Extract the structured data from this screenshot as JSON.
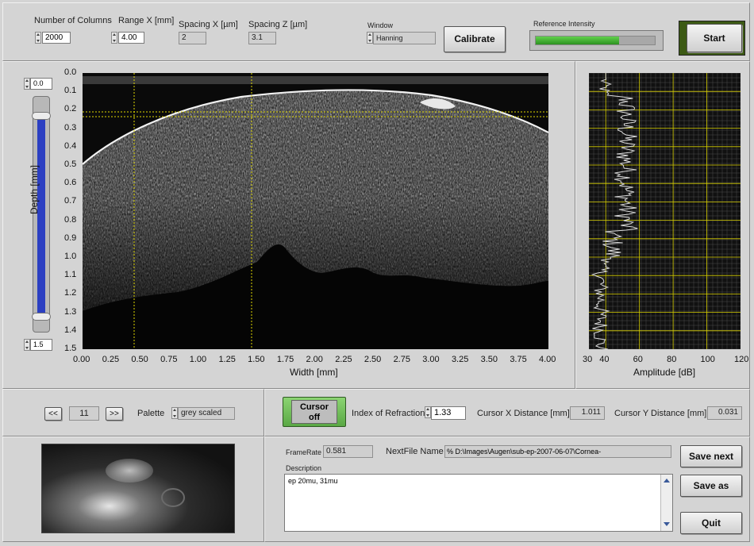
{
  "top": {
    "num_columns_label": "Number of Columns",
    "num_columns_value": "2000",
    "range_x_label": "Range X [mm]",
    "range_x_value": "4.00",
    "spacing_x_label": "Spacing X [µm]",
    "spacing_x_value": "2",
    "spacing_z_label": "Spacing Z [µm]",
    "spacing_z_value": "3.1",
    "window_label": "Window",
    "window_value": "Hanning",
    "calibrate_label": "Calibrate",
    "ref_intensity_label": "Reference Intensity",
    "ref_intensity_level": 0.7,
    "start_label": "Start"
  },
  "image": {
    "slider_top": "0.0",
    "slider_bottom": "1.5",
    "y_axis_label": "Depth [mm]",
    "x_axis_label": "Width [mm]",
    "y_ticks": [
      "0.0",
      "0.1",
      "0.2",
      "0.3",
      "0.4",
      "0.5",
      "0.6",
      "0.7",
      "0.8",
      "0.9",
      "1.0",
      "1.1",
      "1.2",
      "1.3",
      "1.4",
      "1.5"
    ],
    "x_ticks": [
      "0.00",
      "0.25",
      "0.50",
      "0.75",
      "1.00",
      "1.25",
      "1.50",
      "1.75",
      "2.00",
      "2.25",
      "2.50",
      "2.75",
      "3.00",
      "3.25",
      "3.50",
      "3.75",
      "4.00"
    ]
  },
  "profile": {
    "x_axis_label": "Amplitude [dB]",
    "x_ticks": [
      "30",
      "40",
      "60",
      "80",
      "100",
      "120"
    ]
  },
  "nav": {
    "prev_label": "<<",
    "frame_value": "11",
    "next_label": ">>",
    "palette_label": "Palette",
    "palette_value": "grey scaled"
  },
  "controls": {
    "cursor_label": "Cursor",
    "cursor_state": "off",
    "index_refraction_label": "Index of Refraction",
    "index_refraction_value": "1.33",
    "cursor_x_label": "Cursor X Distance [mm]",
    "cursor_x_value": "1.011",
    "cursor_y_label": "Cursor Y Distance [mm]",
    "cursor_y_value": "0.031"
  },
  "file": {
    "framerate_label": "FrameRate",
    "framerate_value": "0.581",
    "next_file_label": "NextFile Name",
    "next_file_value": "D:\\Images\\Augen\\sub-ep-2007-06-07\\Cornea-",
    "description_label": "Description",
    "description_value": "ep 20mu, 31mu",
    "save_next_label": "Save next",
    "save_as_label": "Save as",
    "quit_label": "Quit"
  },
  "colors": {
    "panel": "#d4d4d4",
    "slider_blue": "#2b3fc2",
    "ref_bar_green": "#3cab2a",
    "start_accent": "#3c5a14",
    "cursor_button": "#7bc464",
    "grid_yellow": "#e0d800",
    "graph_bg": "#111111"
  }
}
